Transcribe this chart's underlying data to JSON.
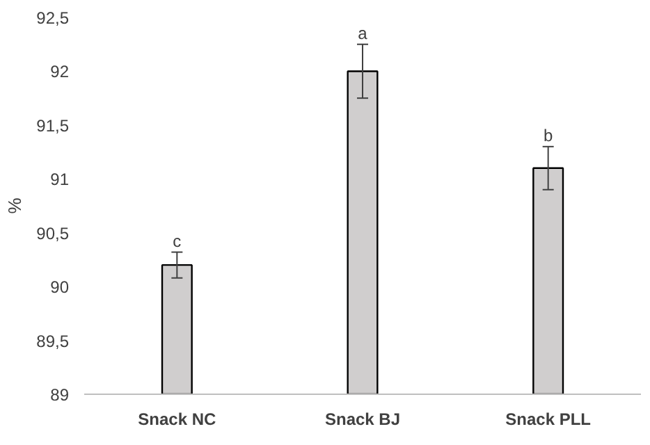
{
  "chart_data": {
    "type": "bar",
    "ylabel": "%",
    "categories": [
      "Snack NC",
      "Snack BJ",
      "Snack PLL"
    ],
    "values": [
      90.2,
      92.0,
      91.1
    ],
    "errors": [
      0.12,
      0.25,
      0.2
    ],
    "color": "#d0cece",
    "ylim": [
      89,
      92.5
    ],
    "yticks": [
      89,
      {
        "value": 89.5,
        "label": "89,5"
      },
      90,
      {
        "value": 90.5,
        "label": "90,5"
      },
      91,
      {
        "value": 91.5,
        "label": "91,5"
      },
      92,
      {
        "value": 92.5,
        "label": "92,5"
      }
    ],
    "annotations": [
      {
        "text": "c",
        "x": "Snack NC",
        "y": 90.32
      },
      {
        "text": "a",
        "x": "Snack BJ",
        "y": 92.25
      },
      {
        "text": "b",
        "x": "Snack PLL",
        "y": 91.3
      }
    ],
    "grid": false
  }
}
